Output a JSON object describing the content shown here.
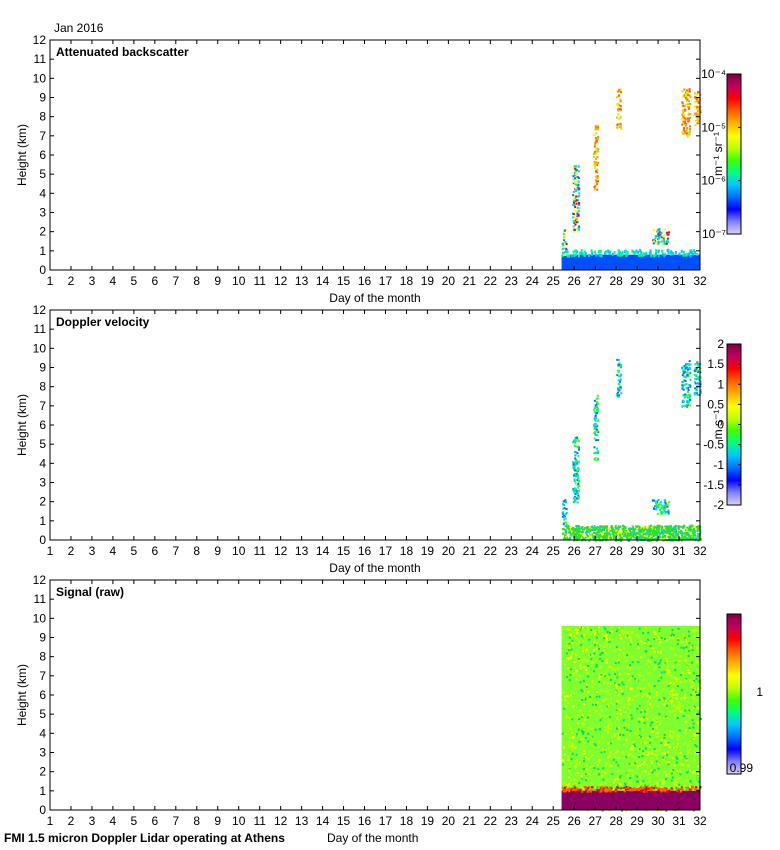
{
  "header": {
    "date_label": "Jan 2016"
  },
  "footer": {
    "instrument_label": "FMI 1.5 micron Doppler Lidar operating at Athens",
    "xlabel": "Day of the month"
  },
  "colors": {
    "jet": [
      "#dcd0f0",
      "#8080ff",
      "#0000ff",
      "#0070ff",
      "#00c8ff",
      "#00ff80",
      "#40ff00",
      "#c0ff00",
      "#ffff00",
      "#ffb000",
      "#ff6000",
      "#ff0000",
      "#c00060",
      "#800040"
    ],
    "backscatter_low": "#0050ff",
    "velocity_low": "#30e020",
    "signal_bg": "#80ff30",
    "signal_base": "#8a0060"
  },
  "chart_data": [
    {
      "type": "heatmap",
      "title": "Attenuated backscatter",
      "xlabel": "Day of the month",
      "ylabel": "Height (km)",
      "xlim": [
        1,
        32
      ],
      "ylim": [
        0,
        12
      ],
      "x_ticks": [
        1,
        2,
        3,
        4,
        5,
        6,
        7,
        8,
        9,
        10,
        11,
        12,
        13,
        14,
        15,
        16,
        17,
        18,
        19,
        20,
        21,
        22,
        23,
        24,
        25,
        26,
        27,
        28,
        29,
        30,
        31,
        32
      ],
      "y_ticks": [
        0,
        1,
        2,
        3,
        4,
        5,
        6,
        7,
        8,
        9,
        10,
        11,
        12
      ],
      "colorbar": {
        "scale": "log",
        "unit_label": "m⁻¹ sr⁻¹",
        "tick_labels": [
          "10⁻⁴",
          "10⁻⁵",
          "10⁻⁶",
          "10⁻⁷"
        ],
        "range": [
          1e-07,
          0.0001
        ]
      },
      "data_start_day": 25.4,
      "features": [
        {
          "day_start": 25.4,
          "day_end": 32,
          "height_min": 0.0,
          "height_max": 0.8,
          "value": "low"
        },
        {
          "day_start": 25.4,
          "day_end": 25.6,
          "height_min": 0.8,
          "height_max": 2.2,
          "value": "mid"
        },
        {
          "day_start": 25.9,
          "day_end": 26.2,
          "height_min": 2.0,
          "height_max": 5.5,
          "value": "mid"
        },
        {
          "day_start": 26.9,
          "day_end": 27.1,
          "height_min": 4.2,
          "height_max": 7.6,
          "value": "high"
        },
        {
          "day_start": 28.0,
          "day_end": 28.2,
          "height_min": 7.4,
          "height_max": 9.5,
          "value": "high"
        },
        {
          "day_start": 29.7,
          "day_end": 30.5,
          "height_min": 1.4,
          "height_max": 2.2,
          "value": "mid"
        },
        {
          "day_start": 31.1,
          "day_end": 31.5,
          "height_min": 7.0,
          "height_max": 9.5,
          "value": "high"
        },
        {
          "day_start": 31.7,
          "day_end": 32.0,
          "height_min": 7.6,
          "height_max": 9.4,
          "value": "high"
        }
      ]
    },
    {
      "type": "heatmap",
      "title": "Doppler velocity",
      "xlabel": "Day of the month",
      "ylabel": "Height (km)",
      "xlim": [
        1,
        32
      ],
      "ylim": [
        0,
        12
      ],
      "x_ticks": [
        1,
        2,
        3,
        4,
        5,
        6,
        7,
        8,
        9,
        10,
        11,
        12,
        13,
        14,
        15,
        16,
        17,
        18,
        19,
        20,
        21,
        22,
        23,
        24,
        25,
        26,
        27,
        28,
        29,
        30,
        31,
        32
      ],
      "y_ticks": [
        0,
        1,
        2,
        3,
        4,
        5,
        6,
        7,
        8,
        9,
        10,
        11,
        12
      ],
      "colorbar": {
        "scale": "linear",
        "unit_label": "m s⁻¹",
        "tick_labels": [
          "2",
          "1.5",
          "1",
          "0.5",
          "0",
          "-0.5",
          "-1",
          "-1.5",
          "-2"
        ],
        "range": [
          -2,
          2
        ]
      },
      "data_start_day": 25.4,
      "features": [
        {
          "day_start": 25.4,
          "day_end": 32,
          "height_min": 0.0,
          "height_max": 0.8,
          "value": 0
        },
        {
          "day_start": 25.4,
          "day_end": 25.6,
          "height_min": 0.8,
          "height_max": 2.2,
          "value": -0.3
        },
        {
          "day_start": 25.9,
          "day_end": 26.2,
          "height_min": 2.0,
          "height_max": 5.5,
          "value": -0.8
        },
        {
          "day_start": 26.9,
          "day_end": 27.1,
          "height_min": 4.2,
          "height_max": 7.6,
          "value": -1.2
        },
        {
          "day_start": 28.0,
          "day_end": 28.2,
          "height_min": 7.4,
          "height_max": 9.5,
          "value": -0.6
        },
        {
          "day_start": 29.7,
          "day_end": 30.5,
          "height_min": 1.4,
          "height_max": 2.2,
          "value": 0.2
        },
        {
          "day_start": 31.1,
          "day_end": 31.5,
          "height_min": 7.0,
          "height_max": 9.5,
          "value": -1.0
        },
        {
          "day_start": 31.7,
          "day_end": 32.0,
          "height_min": 7.6,
          "height_max": 9.4,
          "value": -0.7
        }
      ]
    },
    {
      "type": "heatmap",
      "title": "Signal (raw)",
      "xlabel": "Day of the month",
      "ylabel": "Height (km)",
      "xlim": [
        1,
        32
      ],
      "ylim": [
        0,
        12
      ],
      "x_ticks": [
        1,
        2,
        3,
        4,
        5,
        6,
        7,
        8,
        9,
        10,
        11,
        12,
        13,
        14,
        15,
        16,
        17,
        18,
        19,
        20,
        21,
        22,
        23,
        24,
        25,
        26,
        27,
        28,
        29,
        30,
        31,
        32
      ],
      "y_ticks": [
        0,
        1,
        2,
        3,
        4,
        5,
        6,
        7,
        8,
        9,
        10,
        11,
        12
      ],
      "colorbar": {
        "scale": "linear",
        "unit_label": "",
        "tick_labels": [
          "1",
          "0.99"
        ],
        "range": [
          0.99,
          1.01
        ]
      },
      "data_start_day": 25.4,
      "data_height_max": 9.6,
      "features": [
        {
          "day_start": 25.4,
          "day_end": 32,
          "height_min": 0.0,
          "height_max": 9.6,
          "value": 1.0
        },
        {
          "day_start": 25.4,
          "day_end": 32,
          "height_min": 0.0,
          "height_max": 1.0,
          "value": 1.01
        }
      ]
    }
  ]
}
